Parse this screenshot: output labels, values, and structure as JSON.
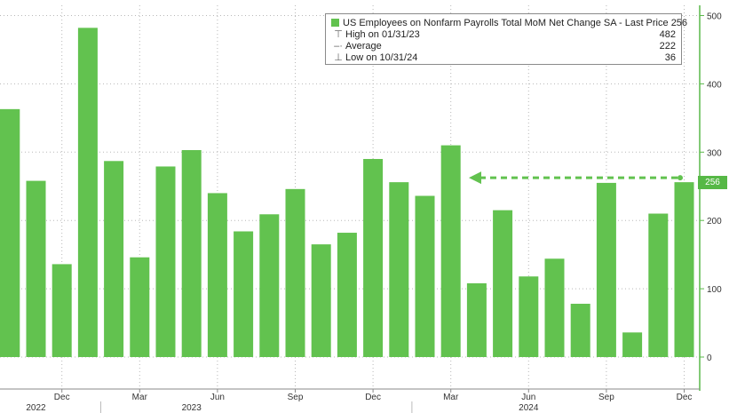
{
  "chart_data": {
    "type": "bar",
    "title": "",
    "xlabel": "",
    "ylabel": "",
    "ylim": [
      0,
      500
    ],
    "y_ticks": [
      0,
      100,
      200,
      300,
      400,
      500
    ],
    "categories": [
      "Nov 2022",
      "Dec 2022",
      "Jan 2023",
      "Feb 2023",
      "Mar 2023",
      "Apr 2023",
      "May 2023",
      "Jun 2023",
      "Jul 2023",
      "Aug 2023",
      "Sep 2023",
      "Oct 2023",
      "Nov 2023",
      "Dec 2023",
      "Jan 2024",
      "Feb 2024",
      "Mar 2024",
      "Apr 2024",
      "May 2024",
      "Jun 2024",
      "Jul 2024",
      "Aug 2024",
      "Sep 2024",
      "Oct 2024",
      "Nov 2024",
      "Dec 2024"
    ],
    "prev_partial_value": 363,
    "series": [
      {
        "name": "US Employees on Nonfarm Payrolls Total MoM Net Change SA - Last Price",
        "values": [
          258,
          136,
          482,
          287,
          146,
          279,
          303,
          240,
          184,
          209,
          246,
          165,
          182,
          290,
          256,
          236,
          310,
          108,
          215,
          118,
          144,
          78,
          255,
          36,
          210,
          256
        ]
      }
    ],
    "x_tick_months": [
      {
        "label": "Dec",
        "index": 1
      },
      {
        "label": "Mar",
        "index": 4
      },
      {
        "label": "Jun",
        "index": 7
      },
      {
        "label": "Sep",
        "index": 10
      },
      {
        "label": "Dec",
        "index": 13
      },
      {
        "label": "Mar",
        "index": 16
      },
      {
        "label": "Jun",
        "index": 19
      },
      {
        "label": "Sep",
        "index": 22
      },
      {
        "label": "Dec",
        "index": 25
      }
    ],
    "x_tick_years": [
      {
        "label": "2022",
        "index": 0
      },
      {
        "label": "2023",
        "index": 6
      },
      {
        "label": "2024",
        "index": 19
      }
    ],
    "grid": true,
    "legend_position": "top-right",
    "colors": {
      "bar": "#62c24f",
      "axis": "#5ab84a",
      "grid": "#b8b8b8",
      "text": "#333333",
      "badge": "#56b846"
    },
    "last_price_line": 256
  },
  "legend": {
    "series_label": "US Employees on Nonfarm Payrolls Total MoM Net Change SA - Last Price",
    "series_value": "256",
    "high_label": "High on 01/31/23",
    "high_value": "482",
    "avg_label": "Average",
    "avg_value": "222",
    "low_label": "Low on 10/31/24",
    "low_value": "36"
  },
  "last_badge": "256"
}
